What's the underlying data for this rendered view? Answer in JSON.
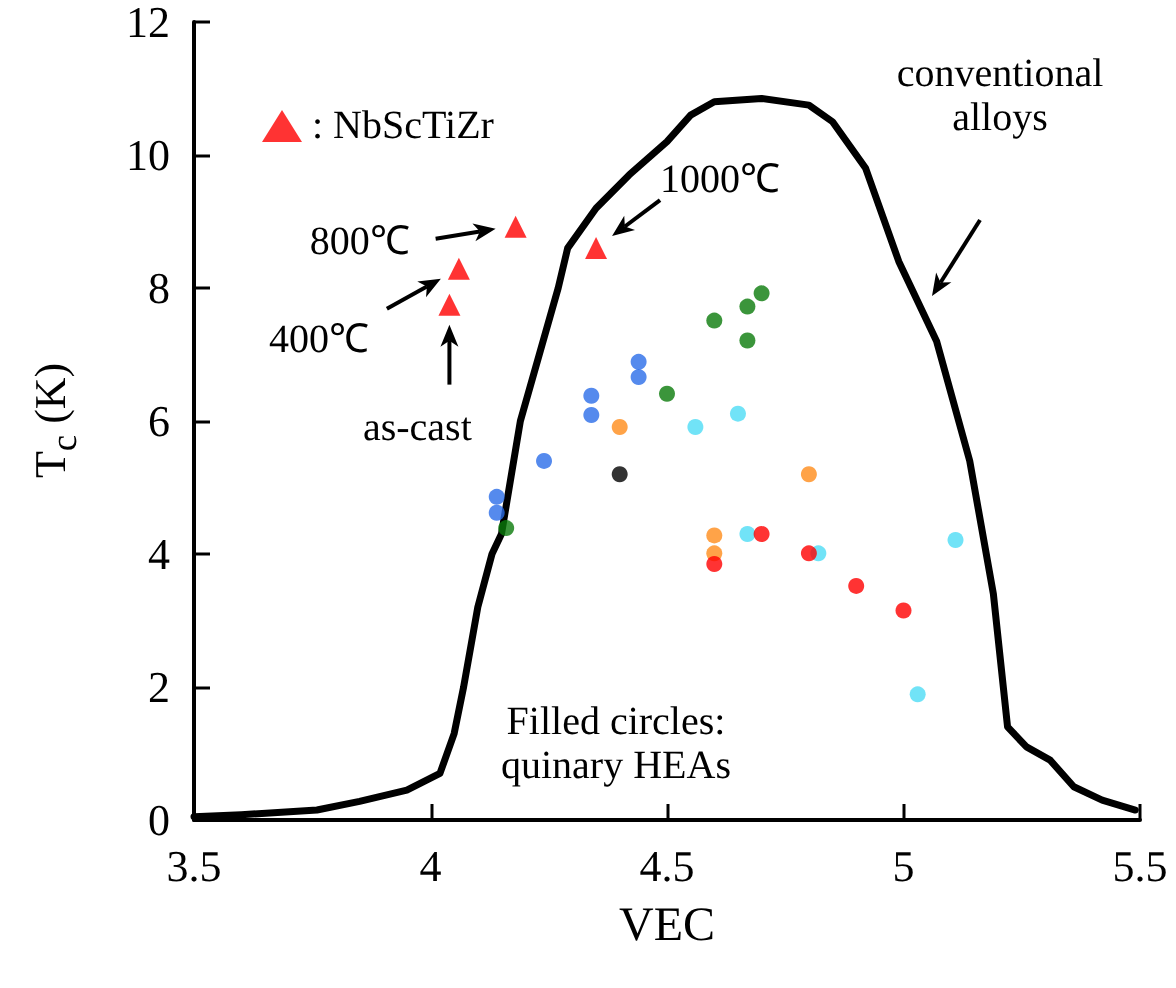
{
  "chart_data": {
    "type": "scatter",
    "xlabel": "VEC",
    "ylabel": "T$_{c}$ (K)",
    "xlim": [
      3.5,
      5.5
    ],
    "xticks": [
      3.5,
      4,
      4.5,
      5,
      5.5
    ],
    "ylim": [
      0,
      12
    ],
    "yticks": [
      0,
      2,
      4,
      6,
      8,
      10,
      12
    ],
    "grid": false,
    "legend": "top left",
    "annotations": [
      {
        "text": "as-cast",
        "x": 4.04,
        "y": 7.75
      },
      {
        "text": "400℃",
        "x": 4.06,
        "y": 8.29
      },
      {
        "text": "800℃",
        "x": 4.18,
        "y": 8.92
      },
      {
        "text": "1000℃",
        "x": 4.35,
        "y": 8.6
      },
      "conventional alloys",
      "Filled circles: quinary HEAs"
    ],
    "series": [
      {
        "type": "line",
        "color": "#000000",
        "marker": "none",
        "x": [
          3.5,
          3.6,
          3.76,
          3.85,
          3.95,
          4.02,
          4.05,
          4.07,
          4.1,
          4.13,
          4.15,
          4.19,
          4.23,
          4.27,
          4.29,
          4.35,
          4.42,
          4.5,
          4.55,
          4.6,
          4.7,
          4.8,
          4.85,
          4.92,
          4.99,
          5.07,
          5.14,
          5.19,
          5.22,
          5.26,
          5.31,
          5.36,
          5.42,
          5.49
        ],
        "values": [
          0.05,
          0.08,
          0.15,
          0.28,
          0.45,
          0.7,
          1.3,
          2,
          3.2,
          4,
          4.3,
          6,
          7,
          8,
          8.6,
          9.2,
          9.7,
          10.2,
          10.6,
          10.8,
          10.85,
          10.75,
          10.5,
          9.8,
          8.4,
          7.2,
          5.4,
          3.4,
          1.4,
          1.1,
          0.9,
          0.5,
          0.3,
          0.15
        ]
      },
      {
        "color": "#2b6de8",
        "marker": "circle",
        "x": [
          4.14,
          4.14,
          4.24,
          4.34,
          4.34,
          4.44,
          4.44
        ],
        "values": [
          4.86,
          4.62,
          5.4,
          6.38,
          6.09,
          6.89,
          6.66
        ]
      },
      {
        "color": "#0a7a0a",
        "marker": "circle",
        "x": [
          4.16,
          4.5,
          4.6,
          4.67,
          4.7,
          4.67
        ],
        "values": [
          4.39,
          6.41,
          7.51,
          7.72,
          7.92,
          7.21
        ]
      },
      {
        "color": "#ff8c1a",
        "marker": "circle",
        "x": [
          4.4,
          4.8,
          4.6,
          4.6
        ],
        "values": [
          5.91,
          5.2,
          4.28,
          4.01
        ]
      },
      {
        "color": "#000000",
        "marker": "circle",
        "x": [
          4.4
        ],
        "values": [
          5.2
        ]
      },
      {
        "color": "#4ddcf5",
        "marker": "circle",
        "x": [
          4.56,
          4.65,
          4.67,
          4.82,
          5.11,
          5.03
        ],
        "values": [
          5.91,
          6.11,
          4.3,
          4.01,
          4.21,
          1.89
        ]
      },
      {
        "color": "#ff0000",
        "marker": "circle",
        "x": [
          4.6,
          4.7,
          4.8,
          4.9,
          5.0
        ],
        "values": [
          3.85,
          4.3,
          4.01,
          3.52,
          3.15
        ]
      },
      {
        "name": ": NbScTiZr",
        "color": "#ff0000",
        "marker": "triangle",
        "x": [
          4.04,
          4.06,
          4.18,
          4.35
        ],
        "values": [
          7.75,
          8.29,
          8.92,
          8.6
        ]
      }
    ]
  }
}
